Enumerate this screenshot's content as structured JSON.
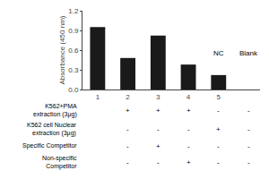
{
  "chart_data": {
    "type": "bar",
    "categories": [
      "1",
      "2",
      "3",
      "4",
      "5"
    ],
    "values": [
      0.95,
      0.48,
      0.82,
      0.38,
      0.22
    ],
    "color": "#1a1a1a",
    "ylabel": "Absorbance (450 nm)",
    "ylim": [
      0.0,
      1.2
    ],
    "yticks": [
      {
        "value": 0.0,
        "label": "0.0"
      },
      0.3,
      0.6,
      0.9,
      1.2
    ],
    "grid": false,
    "annotations": [
      {
        "text": "NC",
        "x": "4",
        "y": 0.46
      },
      {
        "text": "Blank",
        "x": "5",
        "y": 0.46
      }
    ],
    "table_rows": [
      {
        "label": "K562+PMA\nextraction (3μg)",
        "values": [
          "+",
          "+",
          "+",
          "-",
          "-"
        ]
      },
      {
        "label": "K562 cell Nuclear\nextraction (3μg)",
        "values": [
          "-",
          "-",
          "-",
          "+",
          "-"
        ]
      },
      {
        "label": "Specific Competitor",
        "values": [
          "-",
          "+",
          "-",
          "-",
          "-"
        ]
      },
      {
        "label": "Non-specific\nCompetitor",
        "values": [
          "-",
          "-",
          "+",
          "-",
          "-"
        ]
      }
    ]
  }
}
